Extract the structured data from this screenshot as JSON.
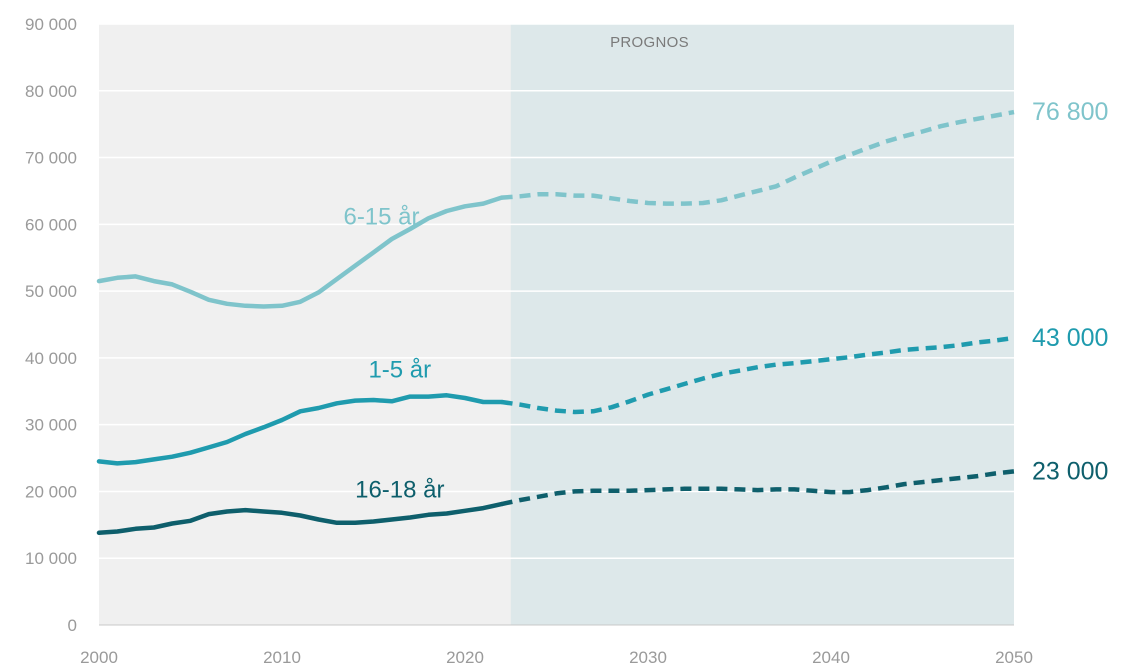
{
  "chart_data": {
    "type": "line",
    "title": "",
    "xlabel": "",
    "ylabel": "",
    "xlim": [
      2000,
      2050
    ],
    "ylim": [
      0,
      90000
    ],
    "x_ticks": [
      "2000",
      "2010",
      "2020",
      "2030",
      "2040",
      "2050"
    ],
    "y_ticks": [
      "0",
      "10 000",
      "20 000",
      "30 000",
      "40 000",
      "50 000",
      "60 000",
      "70 000",
      "80 000",
      "90 000"
    ],
    "grid": true,
    "forecast_region": {
      "label": "PROGNOS",
      "from": 2022.5,
      "to": 2050
    },
    "colors": {
      "plot_background": "#f0f0f0",
      "forecast_background": "#dde8ea",
      "grid": "#ffffff"
    },
    "series": [
      {
        "name": "6-15 år",
        "color": "#7fc4cb",
        "end_label": "76 800",
        "x": [
          2000,
          2001,
          2002,
          2003,
          2004,
          2005,
          2006,
          2007,
          2008,
          2009,
          2010,
          2011,
          2012,
          2013,
          2014,
          2015,
          2016,
          2017,
          2018,
          2019,
          2020,
          2021,
          2022,
          2023,
          2024,
          2025,
          2026,
          2027,
          2028,
          2029,
          2030,
          2031,
          2032,
          2033,
          2034,
          2035,
          2036,
          2037,
          2038,
          2039,
          2040,
          2041,
          2042,
          2043,
          2044,
          2045,
          2046,
          2047,
          2048,
          2049,
          2050
        ],
        "values": [
          51500,
          52000,
          52200,
          51500,
          51000,
          49900,
          48700,
          48100,
          47800,
          47700,
          47800,
          48400,
          49800,
          51800,
          53800,
          55800,
          57800,
          59300,
          60900,
          62000,
          62700,
          63100,
          64000,
          64200,
          64500,
          64500,
          64300,
          64300,
          63900,
          63500,
          63200,
          63100,
          63100,
          63200,
          63600,
          64300,
          65000,
          65700,
          67000,
          68200,
          69400,
          70400,
          71400,
          72400,
          73200,
          73900,
          74700,
          75300,
          75800,
          76300,
          76800
        ]
      },
      {
        "name": "1-5 år",
        "color": "#1f9bae",
        "end_label": "43 000",
        "x": [
          2000,
          2001,
          2002,
          2003,
          2004,
          2005,
          2006,
          2007,
          2008,
          2009,
          2010,
          2011,
          2012,
          2013,
          2014,
          2015,
          2016,
          2017,
          2018,
          2019,
          2020,
          2021,
          2022,
          2023,
          2024,
          2025,
          2026,
          2027,
          2028,
          2029,
          2030,
          2031,
          2032,
          2033,
          2034,
          2035,
          2036,
          2037,
          2038,
          2039,
          2040,
          2041,
          2042,
          2043,
          2044,
          2045,
          2046,
          2047,
          2048,
          2049,
          2050
        ],
        "values": [
          24500,
          24200,
          24400,
          24800,
          25200,
          25800,
          26600,
          27400,
          28600,
          29600,
          30700,
          32000,
          32500,
          33200,
          33600,
          33700,
          33500,
          34200,
          34200,
          34400,
          34000,
          33400,
          33400,
          33000,
          32500,
          32100,
          31900,
          32000,
          32600,
          33500,
          34500,
          35300,
          36100,
          36900,
          37600,
          38100,
          38600,
          39000,
          39200,
          39500,
          39800,
          40100,
          40500,
          40800,
          41200,
          41400,
          41600,
          41900,
          42300,
          42600,
          43000
        ]
      },
      {
        "name": "16-18 år",
        "color": "#0e5f6c",
        "end_label": "23 000",
        "x": [
          2000,
          2001,
          2002,
          2003,
          2004,
          2005,
          2006,
          2007,
          2008,
          2009,
          2010,
          2011,
          2012,
          2013,
          2014,
          2015,
          2016,
          2017,
          2018,
          2019,
          2020,
          2021,
          2022,
          2023,
          2024,
          2025,
          2026,
          2027,
          2028,
          2029,
          2030,
          2031,
          2032,
          2033,
          2034,
          2035,
          2036,
          2037,
          2038,
          2039,
          2040,
          2041,
          2042,
          2043,
          2044,
          2045,
          2046,
          2047,
          2048,
          2049,
          2050
        ],
        "values": [
          13800,
          14000,
          14400,
          14600,
          15200,
          15600,
          16600,
          17000,
          17200,
          17000,
          16800,
          16400,
          15800,
          15300,
          15300,
          15500,
          15800,
          16100,
          16500,
          16700,
          17100,
          17500,
          18100,
          18700,
          19200,
          19700,
          20000,
          20100,
          20100,
          20100,
          20200,
          20300,
          20400,
          20400,
          20400,
          20300,
          20200,
          20300,
          20300,
          20100,
          19900,
          19900,
          20200,
          20600,
          21100,
          21400,
          21700,
          22000,
          22300,
          22700,
          23000
        ]
      }
    ]
  }
}
